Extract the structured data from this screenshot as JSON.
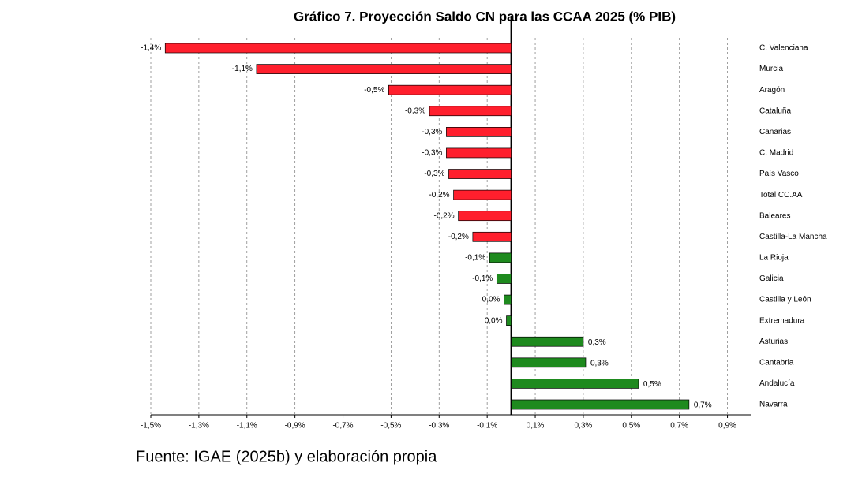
{
  "chart_data": {
    "type": "hbar",
    "title": "Gráfico 7. Proyección Saldo CN para las CCAA 2025 (% PIB)",
    "categories": [
      "C. Valenciana",
      "Murcia",
      "Aragón",
      "Cataluña",
      "Canarias",
      "C. Madrid",
      "País Vasco",
      "Total CC.AA",
      "Baleares",
      "Castilla-La Mancha",
      "La Rioja",
      "Galicia",
      "Castilla y León",
      "Extremadura",
      "Asturias",
      "Cantabria",
      "Andalucía",
      "Navarra"
    ],
    "values": [
      -1.44,
      -1.06,
      -0.51,
      -0.34,
      -0.27,
      -0.27,
      -0.26,
      -0.24,
      -0.22,
      -0.16,
      -0.09,
      -0.06,
      -0.03,
      -0.02,
      0.3,
      0.31,
      0.53,
      0.74
    ],
    "value_labels": [
      "-1,4%",
      "-1,1%",
      "-0,5%",
      "-0,3%",
      "-0,3%",
      "-0,3%",
      "-0,3%",
      "-0,2%",
      "-0,2%",
      "-0,2%",
      "-0,1%",
      "-0,1%",
      "0,0%",
      "0,0%",
      "0,3%",
      "0,3%",
      "0,5%",
      "0,7%"
    ],
    "colors": [
      "#ff1f2d",
      "#ff1f2d",
      "#ff1f2d",
      "#ff1f2d",
      "#ff1f2d",
      "#ff1f2d",
      "#ff1f2d",
      "#ff1f2d",
      "#ff1f2d",
      "#ff1f2d",
      "#1e8a1e",
      "#1e8a1e",
      "#1e8a1e",
      "#1e8a1e",
      "#1e8a1e",
      "#1e8a1e",
      "#1e8a1e",
      "#1e8a1e"
    ],
    "xlim": [
      -1.5,
      1.0
    ],
    "xticks": [
      {
        "value": -1.5,
        "label": "-1,5%"
      },
      {
        "value": -1.3,
        "label": "-1,3%"
      },
      {
        "value": -1.1,
        "label": "-1,1%"
      },
      {
        "value": -0.9,
        "label": "-0,9%"
      },
      {
        "value": -0.7,
        "label": "-0,7%"
      },
      {
        "value": -0.5,
        "label": "-0,5%"
      },
      {
        "value": -0.3,
        "label": "-0,3%"
      },
      {
        "value": -0.1,
        "label": "-0,1%"
      },
      {
        "value": 0.1,
        "label": "0,1%"
      },
      {
        "value": 0.3,
        "label": "0,3%"
      },
      {
        "value": 0.5,
        "label": "0,5%"
      },
      {
        "value": 0.7,
        "label": "0,7%"
      },
      {
        "value": 0.9,
        "label": "0,9%"
      }
    ],
    "grid": true,
    "source": "Fuente: IGAE (2025b) y elaboración propia"
  }
}
